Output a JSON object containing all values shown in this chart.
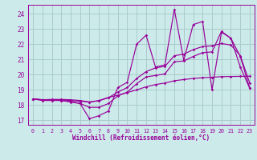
{
  "xlabel": "Windchill (Refroidissement éolien,°C)",
  "bg_color": "#cceaea",
  "line_color": "#990099",
  "grid_color": "#aacccc",
  "x_ticks": [
    0,
    1,
    2,
    3,
    4,
    5,
    6,
    7,
    8,
    9,
    10,
    11,
    12,
    13,
    14,
    15,
    16,
    17,
    18,
    19,
    20,
    21,
    22,
    23
  ],
  "y_ticks": [
    17,
    18,
    19,
    20,
    21,
    22,
    23,
    24
  ],
  "xlim": [
    -0.5,
    23.5
  ],
  "ylim": [
    16.7,
    24.6
  ],
  "series": [
    [
      18.4,
      18.3,
      18.3,
      18.3,
      18.2,
      18.1,
      17.1,
      17.3,
      17.6,
      19.15,
      19.5,
      22.0,
      22.6,
      20.5,
      20.65,
      24.3,
      20.95,
      23.3,
      23.5,
      19.0,
      22.8,
      22.4,
      20.5,
      19.1
    ],
    [
      18.4,
      18.35,
      18.35,
      18.35,
      18.3,
      18.25,
      18.2,
      18.3,
      18.5,
      18.65,
      18.82,
      19.0,
      19.2,
      19.35,
      19.45,
      19.6,
      19.68,
      19.75,
      19.8,
      19.83,
      19.87,
      19.88,
      19.89,
      19.9
    ],
    [
      18.4,
      18.35,
      18.35,
      18.3,
      18.25,
      18.1,
      17.85,
      17.85,
      18.1,
      18.6,
      18.85,
      19.4,
      19.85,
      19.95,
      20.05,
      20.85,
      20.9,
      21.2,
      21.45,
      21.5,
      22.85,
      22.4,
      21.2,
      19.1
    ],
    [
      18.4,
      18.35,
      18.37,
      18.37,
      18.35,
      18.3,
      18.2,
      18.28,
      18.48,
      18.85,
      19.15,
      19.75,
      20.2,
      20.45,
      20.55,
      21.25,
      21.35,
      21.65,
      21.85,
      21.9,
      22.05,
      21.95,
      21.25,
      19.45
    ]
  ]
}
